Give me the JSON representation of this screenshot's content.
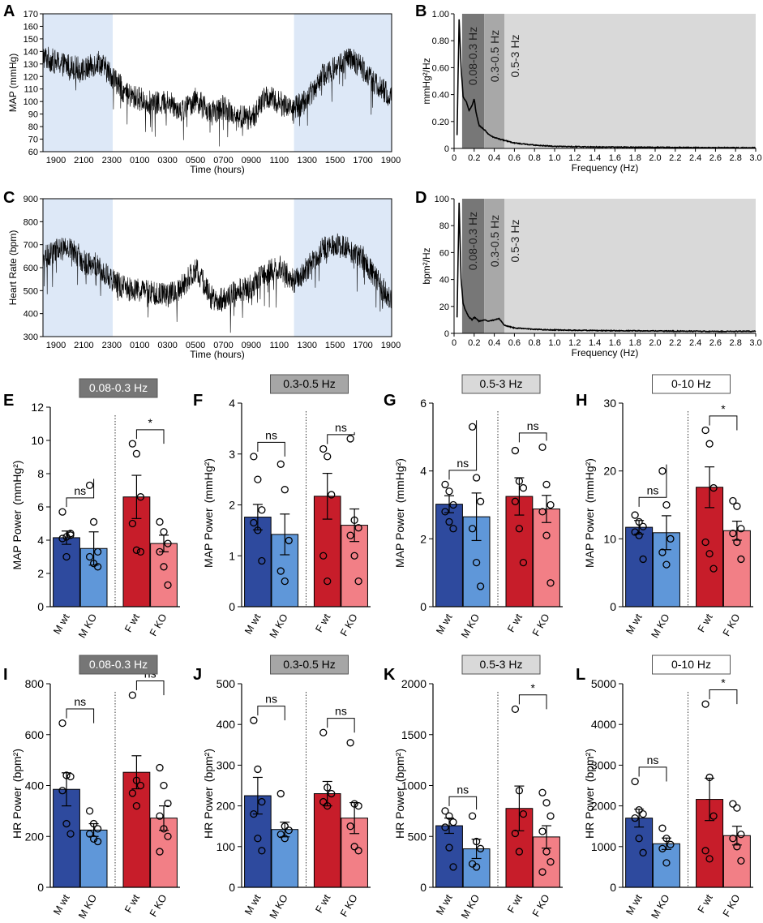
{
  "chart_data": [
    {
      "id": "A",
      "type": "line",
      "panel_label": "A",
      "ylabel": "MAP (mmHg)",
      "xlabel": "Time (hours)",
      "ylim": [
        60,
        170
      ],
      "yticks": [
        60,
        70,
        80,
        90,
        100,
        110,
        120,
        130,
        140,
        150,
        160,
        170
      ],
      "xticks": [
        "1900",
        "2100",
        "2300",
        "0100",
        "0300",
        "0500",
        "0700",
        "0900",
        "1100",
        "1300",
        "1500",
        "1700",
        "1900"
      ],
      "x": [
        0,
        1,
        2,
        3,
        4,
        5,
        6,
        7,
        8,
        9,
        10,
        11,
        12,
        13,
        14,
        15,
        16,
        17,
        18,
        19,
        20,
        21,
        22,
        23,
        24,
        25
      ],
      "y": [
        136,
        131,
        128,
        125,
        132,
        120,
        105,
        102,
        98,
        100,
        93,
        102,
        90,
        96,
        88,
        87,
        104,
        99,
        94,
        103,
        120,
        128,
        134,
        126,
        112,
        103
      ],
      "shaded": [
        [
          0,
          5
        ],
        [
          18,
          25
        ]
      ],
      "shade_color": "#dde8f7"
    },
    {
      "id": "B",
      "type": "line",
      "panel_label": "B",
      "ylabel": "mmHg²/Hz",
      "xlabel": "Frequency (Hz)",
      "xlim": [
        0,
        3
      ],
      "ylim": [
        0,
        1
      ],
      "xticks": [
        "0",
        "0.2",
        "0.4",
        "0.6",
        "0.8",
        "1.0",
        "1.2",
        "1.4",
        "1.6",
        "1.8",
        "2.0",
        "2.2",
        "2.4",
        "2.6",
        "2.8",
        "3.0"
      ],
      "yticks": [
        "0",
        "0.20",
        "0.40",
        "0.60",
        "0.80",
        "1.00"
      ],
      "x": [
        0.03,
        0.05,
        0.07,
        0.09,
        0.12,
        0.15,
        0.18,
        0.2,
        0.22,
        0.25,
        0.3,
        0.35,
        0.4,
        0.5,
        0.6,
        0.8,
        1.0,
        1.5,
        2.0,
        2.5,
        3.0
      ],
      "y": [
        0.1,
        0.97,
        0.6,
        0.38,
        0.35,
        0.28,
        0.32,
        0.37,
        0.26,
        0.17,
        0.14,
        0.1,
        0.08,
        0.06,
        0.04,
        0.025,
        0.015,
        0.01,
        0.008,
        0.006,
        0.005
      ],
      "bands": [
        {
          "label": "0.08-0.3 Hz",
          "from": 0.08,
          "to": 0.3,
          "color": "#777777"
        },
        {
          "label": "0.3-0.5 Hz",
          "from": 0.3,
          "to": 0.5,
          "color": "#a8a8a8"
        },
        {
          "label": "0.5-3 Hz",
          "from": 0.5,
          "to": 3.0,
          "color": "#d9d9d9"
        }
      ]
    },
    {
      "id": "C",
      "type": "line",
      "panel_label": "C",
      "ylabel": "Heart Rate (bpm)",
      "xlabel": "Time (hours)",
      "ylim": [
        300,
        900
      ],
      "yticks": [
        300,
        400,
        500,
        600,
        700,
        800,
        900
      ],
      "xticks": [
        "1900",
        "2100",
        "2300",
        "0100",
        "0300",
        "0500",
        "0700",
        "0900",
        "1100",
        "1300",
        "1500",
        "1700",
        "1900"
      ],
      "x": [
        0,
        1,
        2,
        3,
        4,
        5,
        6,
        7,
        8,
        9,
        10,
        11,
        12,
        13,
        14,
        15,
        16,
        17,
        18,
        19,
        20,
        21,
        22,
        23,
        24,
        25
      ],
      "y": [
        640,
        680,
        690,
        620,
        610,
        540,
        510,
        500,
        490,
        480,
        520,
        600,
        470,
        460,
        500,
        520,
        580,
        600,
        540,
        600,
        680,
        700,
        680,
        640,
        540,
        450
      ],
      "shaded": [
        [
          0,
          5
        ],
        [
          18,
          25
        ]
      ],
      "shade_color": "#dde8f7"
    },
    {
      "id": "D",
      "type": "line",
      "panel_label": "D",
      "ylabel": "bpm²/Hz",
      "xlabel": "Frequency (Hz)",
      "xlim": [
        0,
        3
      ],
      "ylim": [
        0,
        100
      ],
      "xticks": [
        "0",
        "0.2",
        "0.4",
        "0.6",
        "0.8",
        "1.0",
        "1.2",
        "1.4",
        "1.6",
        "1.8",
        "2.0",
        "2.2",
        "2.4",
        "2.6",
        "2.8",
        "3.0"
      ],
      "yticks": [
        "0",
        "20",
        "40",
        "60",
        "80",
        "100"
      ],
      "x": [
        0.03,
        0.05,
        0.07,
        0.09,
        0.12,
        0.15,
        0.18,
        0.2,
        0.25,
        0.3,
        0.35,
        0.4,
        0.45,
        0.5,
        0.6,
        0.8,
        1.0,
        1.5,
        2.0,
        2.5,
        3.0
      ],
      "y": [
        12,
        98,
        40,
        22,
        16,
        12,
        10,
        12,
        9,
        10,
        9,
        10,
        11,
        6,
        4,
        3,
        2.5,
        2,
        1.8,
        1.5,
        1.5
      ],
      "bands": [
        {
          "label": "0.08-0.3 Hz",
          "from": 0.08,
          "to": 0.3,
          "color": "#777777"
        },
        {
          "label": "0.3-0.5 Hz",
          "from": 0.3,
          "to": 0.5,
          "color": "#a8a8a8"
        },
        {
          "label": "0.5-3 Hz",
          "from": 0.5,
          "to": 3.0,
          "color": "#d9d9d9"
        }
      ]
    },
    {
      "id": "E",
      "type": "bar",
      "panel_label": "E",
      "band_label": "0.08-0.3 Hz",
      "box_fill": "#767676",
      "box_text": "#ffffff",
      "ylabel": "MAP Power",
      "unit": "(mmHg²)",
      "ylim": [
        0,
        12
      ],
      "yticks": [
        "0",
        "2",
        "4",
        "6",
        "8",
        "10",
        "12"
      ],
      "categories": [
        "M wt",
        "M KO",
        "F wt",
        "F KO"
      ],
      "values": [
        4.15,
        3.5,
        6.6,
        3.8
      ],
      "sem": [
        0.4,
        1.0,
        1.3,
        0.5
      ],
      "points": [
        [
          5.7,
          4.2,
          4.4,
          4.1,
          3.0,
          4.3
        ],
        [
          7.3,
          5.1,
          3.3,
          3.0,
          2.6,
          2.4
        ],
        [
          9.8,
          9.2,
          6.6,
          5.0,
          3.4,
          3.3
        ],
        [
          5.1,
          4.5,
          3.8,
          3.3,
          2.4,
          1.3
        ]
      ],
      "comparisons": [
        {
          "pair": "M wt-M KO",
          "label": "ns",
          "y": 5.7
        },
        {
          "pair": "F wt-F KO",
          "label": "*",
          "y": 9.8
        }
      ]
    },
    {
      "id": "F",
      "type": "bar",
      "panel_label": "F",
      "band_label": "0.3-0.5 Hz",
      "box_fill": "#a6a6a6",
      "box_text": "#000000",
      "ylabel": "MAP Power",
      "unit": "(mmHg²)",
      "ylim": [
        0,
        4
      ],
      "yticks": [
        "0",
        "1",
        "2",
        "3",
        "4"
      ],
      "categories": [
        "M wt",
        "M KO",
        "F wt",
        "F KO"
      ],
      "values": [
        1.76,
        1.42,
        2.17,
        1.6
      ],
      "sem": [
        0.25,
        0.4,
        0.45,
        0.32
      ],
      "points": [
        [
          2.95,
          2.5,
          1.9,
          1.65,
          1.5,
          0.9
        ],
        [
          2.8,
          2.3,
          1.3,
          0.7,
          0.5
        ],
        [
          3.1,
          2.95,
          2.2,
          1.0,
          0.5
        ],
        [
          3.3,
          1.7,
          1.55,
          1.4,
          1.0,
          0.5
        ]
      ],
      "comparisons": [
        {
          "pair": "M wt-M KO",
          "label": "ns",
          "y": 2.95
        },
        {
          "pair": "F wt-F KO",
          "label": "ns",
          "y": 3.1
        }
      ]
    },
    {
      "id": "G",
      "type": "bar",
      "panel_label": "G",
      "band_label": "0.5-3 Hz",
      "box_fill": "#d9d9d9",
      "box_text": "#000000",
      "ylabel": "MAP Power",
      "unit": "(mmHg²)",
      "ylim": [
        0,
        6
      ],
      "yticks": [
        "0",
        "2",
        "4",
        "6"
      ],
      "categories": [
        "M wt",
        "M KO",
        "F wt",
        "F KO"
      ],
      "values": [
        3.02,
        2.65,
        3.25,
        2.88
      ],
      "sem": [
        0.25,
        0.7,
        0.55,
        0.4
      ],
      "points": [
        [
          3.6,
          3.4,
          3.0,
          2.8,
          2.5,
          2.3
        ],
        [
          5.3,
          3.8,
          3.1,
          2.3,
          1.3,
          0.6
        ],
        [
          4.6,
          3.7,
          3.5,
          3.1,
          2.3,
          1.3
        ],
        [
          4.7,
          3.6,
          3.0,
          2.8,
          2.1,
          0.7
        ]
      ],
      "comparisons": [
        {
          "pair": "M wt-M KO",
          "label": "ns",
          "y": 3.6
        },
        {
          "pair": "F wt-F KO",
          "label": "ns",
          "y": 4.7
        }
      ]
    },
    {
      "id": "H",
      "type": "bar",
      "panel_label": "H",
      "band_label": "0-10 Hz",
      "box_fill": "#ffffff",
      "box_text": "#000000",
      "ylabel": "MAP Power",
      "unit": "(mmHg²)",
      "ylim": [
        0,
        30
      ],
      "yticks": [
        "0",
        "10",
        "20",
        "30"
      ],
      "categories": [
        "M wt",
        "M KO",
        "F wt",
        "F KO"
      ],
      "values": [
        11.7,
        10.9,
        17.6,
        11.2
      ],
      "sem": [
        1.0,
        2.5,
        3.0,
        1.4
      ],
      "points": [
        [
          13.5,
          12.5,
          11.8,
          11.0,
          10.5,
          7.0
        ],
        [
          20.0,
          15.0,
          10.0,
          8.0,
          6.2
        ],
        [
          26.0,
          24.0,
          17.5,
          9.5,
          7.8,
          5.6
        ],
        [
          15.6,
          14.8,
          11.5,
          10.8,
          9.5,
          7.0
        ]
      ],
      "comparisons": [
        {
          "pair": "M wt-M KO",
          "label": "ns",
          "y": 14.0
        },
        {
          "pair": "F wt-F KO",
          "label": "*",
          "y": 26.0
        }
      ]
    },
    {
      "id": "I",
      "type": "bar",
      "panel_label": "I",
      "band_label": "0.08-0.3 Hz",
      "box_fill": "#767676",
      "box_text": "#ffffff",
      "ylabel": "HR Power",
      "unit": "(bpm²)",
      "ylim": [
        0,
        800
      ],
      "yticks": [
        "0",
        "200",
        "400",
        "600",
        "800"
      ],
      "categories": [
        "M wt",
        "M KO",
        "F wt",
        "F KO"
      ],
      "values": [
        385,
        225,
        452,
        272
      ],
      "sem": [
        65,
        25,
        65,
        48
      ],
      "points": [
        [
          645,
          440,
          435,
          380,
          250,
          210
        ],
        [
          300,
          250,
          230,
          210,
          190,
          180
        ],
        [
          755,
          420,
          400,
          370,
          320
        ],
        [
          470,
          400,
          330,
          280,
          230,
          200,
          140
        ]
      ],
      "comparisons": [
        {
          "pair": "M wt-M KO",
          "label": "ns",
          "y": 645
        },
        {
          "pair": "F wt-F KO",
          "label": "ns",
          "y": 755
        }
      ]
    },
    {
      "id": "J",
      "type": "bar",
      "panel_label": "J",
      "band_label": "0.3-0.5 Hz",
      "box_fill": "#a6a6a6",
      "box_text": "#000000",
      "ylabel": "HR Power",
      "unit": "(bpm²)",
      "ylim": [
        0,
        500
      ],
      "yticks": [
        "0",
        "100",
        "200",
        "300",
        "400",
        "500"
      ],
      "categories": [
        "M wt",
        "M KO",
        "F wt",
        "F KO"
      ],
      "values": [
        225,
        142,
        230,
        170
      ],
      "sem": [
        45,
        18,
        30,
        38
      ],
      "points": [
        [
          410,
          290,
          210,
          180,
          120,
          90
        ],
        [
          230,
          150,
          140,
          130,
          120
        ],
        [
          380,
          245,
          230,
          210,
          200
        ],
        [
          355,
          205,
          200,
          150,
          100,
          90
        ]
      ],
      "comparisons": [
        {
          "pair": "M wt-M KO",
          "label": "ns",
          "y": 410
        },
        {
          "pair": "F wt-F KO",
          "label": "ns",
          "y": 380
        }
      ]
    },
    {
      "id": "K",
      "type": "bar",
      "panel_label": "K",
      "band_label": "0.5-3 Hz",
      "box_fill": "#d9d9d9",
      "box_text": "#000000",
      "ylabel": "HR Power",
      "unit": "(bpm²)",
      "ylim": [
        0,
        2000
      ],
      "yticks": [
        "0",
        "500",
        "1000",
        "1500",
        "2000"
      ],
      "categories": [
        "M wt",
        "M KO",
        "F wt",
        "F KO"
      ],
      "values": [
        605,
        378,
        775,
        495
      ],
      "sem": [
        75,
        95,
        220,
        110
      ],
      "points": [
        [
          750,
          700,
          640,
          590,
          390,
          200
        ],
        [
          700,
          450,
          380,
          230,
          200
        ],
        [
          1750,
          950,
          720,
          530,
          350
        ],
        [
          930,
          830,
          700,
          550,
          350,
          250,
          150
        ]
      ],
      "comparisons": [
        {
          "pair": "M wt-M KO",
          "label": "ns",
          "y": 750
        },
        {
          "pair": "F wt-F KO",
          "label": "*",
          "y": 1750
        }
      ]
    },
    {
      "id": "L",
      "type": "bar",
      "panel_label": "L",
      "band_label": "0-10 Hz",
      "box_fill": "#ffffff",
      "box_text": "#000000",
      "ylabel": "HR Power",
      "unit": "(bpm²)",
      "ylim": [
        0,
        5000
      ],
      "yticks": [
        "0",
        "1000",
        "2000",
        "3000",
        "4000",
        "5000"
      ],
      "categories": [
        "M wt",
        "M KO",
        "F wt",
        "F KO"
      ],
      "values": [
        1700,
        1070,
        2160,
        1270
      ],
      "sem": [
        220,
        140,
        520,
        230
      ],
      "points": [
        [
          2600,
          1900,
          1800,
          1700,
          1200,
          850
        ],
        [
          1450,
          1200,
          1050,
          950,
          600
        ],
        [
          4500,
          2700,
          1750,
          900,
          700
        ],
        [
          2050,
          1950,
          1300,
          1200,
          1000,
          650
        ]
      ],
      "comparisons": [
        {
          "pair": "M wt-M KO",
          "label": "ns",
          "y": 2600
        },
        {
          "pair": "F wt-F KO",
          "label": "*",
          "y": 4500
        }
      ]
    }
  ],
  "bar_colors": [
    "#2e4a9e",
    "#5f97d9",
    "#c71d2a",
    "#f27f86"
  ],
  "trace_color": "#000000"
}
